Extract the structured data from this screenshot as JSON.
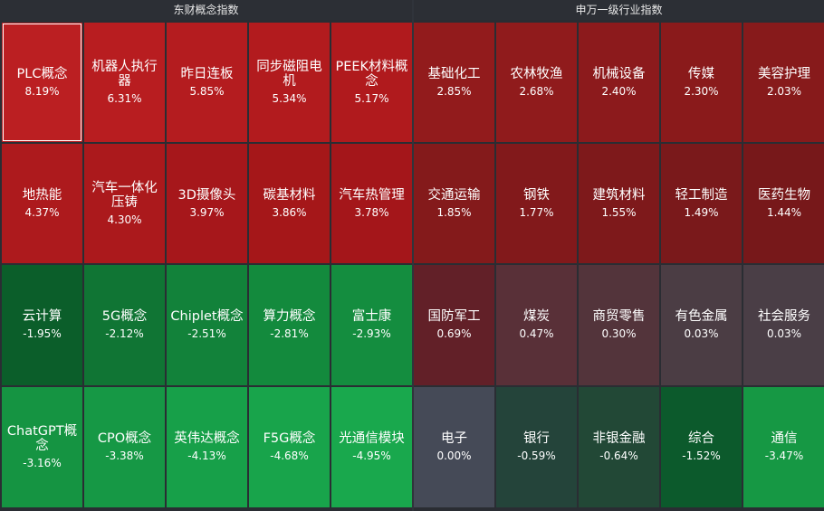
{
  "chart_data": [
    {
      "type": "heatmap",
      "title": "东财概念指数",
      "rows": 4,
      "cols": 5,
      "cells": [
        {
          "name": "PLC概念",
          "value": "8.19%",
          "pct": 8.19,
          "color": "#bb1f22"
        },
        {
          "name": "机器人执行器",
          "value": "6.31%",
          "pct": 6.31,
          "color": "#b81d20"
        },
        {
          "name": "昨日连板",
          "value": "5.85%",
          "pct": 5.85,
          "color": "#b41c1f"
        },
        {
          "name": "同步磁阻电机",
          "value": "5.34%",
          "pct": 5.34,
          "color": "#b21b1e"
        },
        {
          "name": "PEEK材料概念",
          "value": "5.17%",
          "pct": 5.17,
          "color": "#b01a1d"
        },
        {
          "name": "地热能",
          "value": "4.37%",
          "pct": 4.37,
          "color": "#ad1a1d"
        },
        {
          "name": "汽车一体化压铸",
          "value": "4.30%",
          "pct": 4.3,
          "color": "#ab191c"
        },
        {
          "name": "3D摄像头",
          "value": "3.97%",
          "pct": 3.97,
          "color": "#a6171b"
        },
        {
          "name": "碳基材料",
          "value": "3.86%",
          "pct": 3.86,
          "color": "#a51719"
        },
        {
          "name": "汽车热管理",
          "value": "3.78%",
          "pct": 3.78,
          "color": "#a4161a"
        },
        {
          "name": "云计算",
          "value": "-1.95%",
          "pct": -1.95,
          "color": "#0b5e2a"
        },
        {
          "name": "5G概念",
          "value": "-2.12%",
          "pct": -2.12,
          "color": "#107534"
        },
        {
          "name": "Chiplet概念",
          "value": "-2.51%",
          "pct": -2.51,
          "color": "#12823a"
        },
        {
          "name": "算力概念",
          "value": "-2.81%",
          "pct": -2.81,
          "color": "#138a3d"
        },
        {
          "name": "富士康",
          "value": "-2.93%",
          "pct": -2.93,
          "color": "#148d3f"
        },
        {
          "name": "ChatGPT概念",
          "value": "-3.16%",
          "pct": -3.16,
          "color": "#159442"
        },
        {
          "name": "CPO概念",
          "value": "-3.38%",
          "pct": -3.38,
          "color": "#169845"
        },
        {
          "name": "英伟达概念",
          "value": "-4.13%",
          "pct": -4.13,
          "color": "#17a049"
        },
        {
          "name": "F5G概念",
          "value": "-4.68%",
          "pct": -4.68,
          "color": "#18a44b"
        },
        {
          "name": "光通信模块",
          "value": "-4.95%",
          "pct": -4.95,
          "color": "#19a84d"
        }
      ]
    },
    {
      "type": "heatmap",
      "title": "申万一级行业指数",
      "rows": 4,
      "cols": 5,
      "cells": [
        {
          "name": "基础化工",
          "value": "2.85%",
          "pct": 2.85,
          "color": "#921b1c"
        },
        {
          "name": "农林牧渔",
          "value": "2.68%",
          "pct": 2.68,
          "color": "#901b1c"
        },
        {
          "name": "机械设备",
          "value": "2.40%",
          "pct": 2.4,
          "color": "#8c1a1c"
        },
        {
          "name": "传媒",
          "value": "2.30%",
          "pct": 2.3,
          "color": "#8a1a1b"
        },
        {
          "name": "美容护理",
          "value": "2.03%",
          "pct": 2.03,
          "color": "#871a1b"
        },
        {
          "name": "交通运输",
          "value": "1.85%",
          "pct": 1.85,
          "color": "#841a1b"
        },
        {
          "name": "钢铁",
          "value": "1.77%",
          "pct": 1.77,
          "color": "#82191b"
        },
        {
          "name": "建筑材料",
          "value": "1.55%",
          "pct": 1.55,
          "color": "#7e191b"
        },
        {
          "name": "轻工制造",
          "value": "1.49%",
          "pct": 1.49,
          "color": "#7a191b"
        },
        {
          "name": "医药生物",
          "value": "1.44%",
          "pct": 1.44,
          "color": "#77181a"
        },
        {
          "name": "国防军工",
          "value": "0.69%",
          "pct": 0.69,
          "color": "#622028"
        },
        {
          "name": "煤炭",
          "value": "0.47%",
          "pct": 0.47,
          "color": "#593038"
        },
        {
          "name": "商贸零售",
          "value": "0.30%",
          "pct": 0.3,
          "color": "#53343b"
        },
        {
          "name": "有色金属",
          "value": "0.03%",
          "pct": 0.03,
          "color": "#4b3d44"
        },
        {
          "name": "社会服务",
          "value": "0.03%",
          "pct": 0.03,
          "color": "#4a3e46"
        },
        {
          "name": "电子",
          "value": "0.00%",
          "pct": 0.0,
          "color": "#454a57"
        },
        {
          "name": "银行",
          "value": "-0.59%",
          "pct": -0.59,
          "color": "#24443a"
        },
        {
          "name": "非银金融",
          "value": "-0.64%",
          "pct": -0.64,
          "color": "#224836"
        },
        {
          "name": "综合",
          "value": "-1.52%",
          "pct": -1.52,
          "color": "#0c5a2c"
        },
        {
          "name": "通信",
          "value": "-3.47%",
          "pct": -3.47,
          "color": "#169844"
        }
      ]
    }
  ],
  "selected_tile": "PLC概念"
}
